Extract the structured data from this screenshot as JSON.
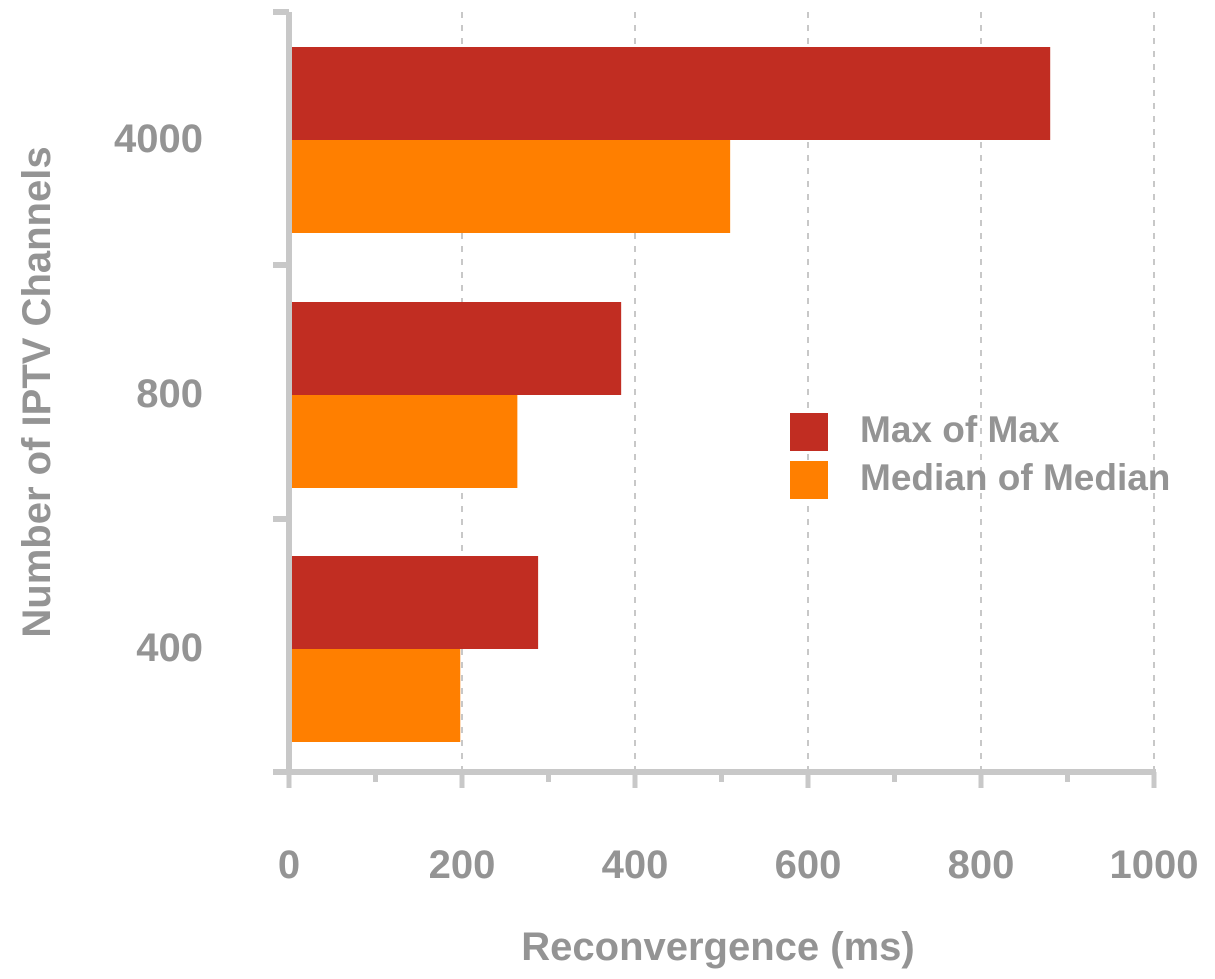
{
  "chart_data": {
    "type": "bar",
    "orientation": "horizontal",
    "categories": [
      "4000",
      "800",
      "400"
    ],
    "series": [
      {
        "name": "Max of Max",
        "values": [
          880,
          384,
          288
        ],
        "color": "#c12d22"
      },
      {
        "name": "Median of Median",
        "values": [
          510,
          264,
          198
        ],
        "color": "#ff7f00"
      }
    ],
    "title": "",
    "xlabel": "Reconvergence (ms)",
    "ylabel": "Number of IPTV Channels",
    "xlim": [
      0,
      1000
    ],
    "xticks": [
      0,
      200,
      400,
      600,
      800,
      1000
    ],
    "grid": "vertical dashed",
    "legend_position": "right"
  },
  "colors": {
    "axis": "#c8c8c8",
    "grid": "#c8c8c8",
    "text": "#949494"
  }
}
